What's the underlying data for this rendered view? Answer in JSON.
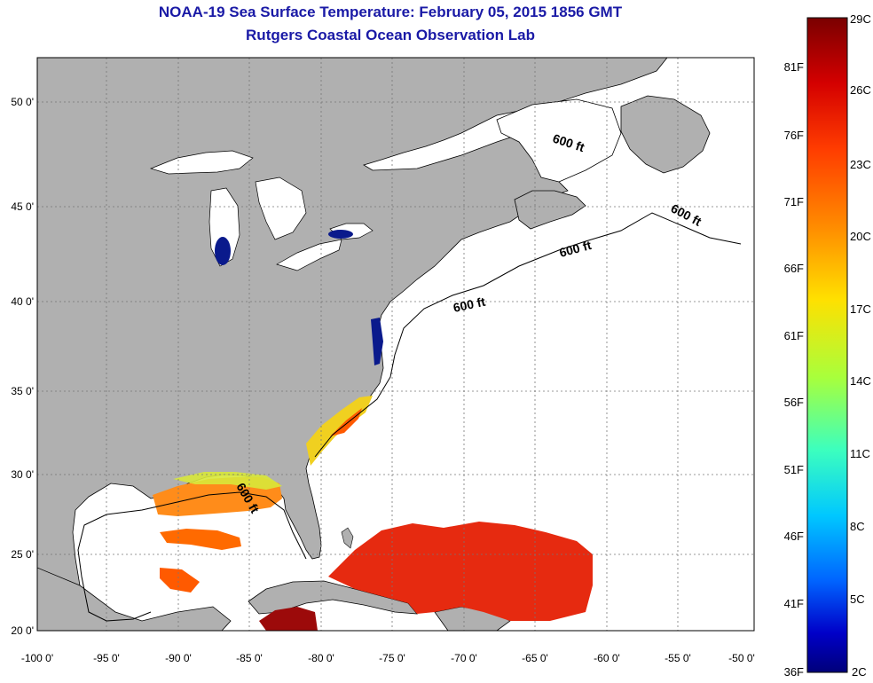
{
  "header": {
    "title": "NOAA-19 Sea Surface Temperature:  February 05, 2015 1856 GMT",
    "subtitle": "Rutgers Coastal Ocean Observation Lab"
  },
  "map": {
    "x_ticks": [
      "-100 0'",
      "-95 0'",
      "-90 0'",
      "-85 0'",
      "-80 0'",
      "-75 0'",
      "-70 0'",
      "-65 0'",
      "-60 0'",
      "-55 0'",
      "-50 0'"
    ],
    "y_ticks": [
      "50 0'",
      "45 0'",
      "40 0'",
      "35 0'",
      "30 0'",
      "25 0'",
      "20 0'"
    ],
    "lon_range": [
      -100,
      -50
    ],
    "lat_range": [
      20,
      52.5
    ],
    "land_color": "#b0b0b0",
    "ocean_color": "#ffffff",
    "contour_labels": [
      "600 ft",
      "600 ft",
      "600 ft",
      "600 ft",
      "600 ft"
    ]
  },
  "colorbar": {
    "celsius_labels": [
      "29C",
      "26C",
      "23C",
      "20C",
      "17C",
      "14C",
      "11C",
      "8C",
      "5C",
      "2C"
    ],
    "fahrenheit_labels": [
      "81F",
      "76F",
      "71F",
      "66F",
      "61F",
      "56F",
      "51F",
      "46F",
      "41F",
      "36F"
    ],
    "colors": [
      "#7a0000",
      "#d40000",
      "#ff3c00",
      "#ff8c00",
      "#ffe000",
      "#a8ff3c",
      "#3cffbe",
      "#00c8ff",
      "#0064ff",
      "#0000c8",
      "#00007a"
    ]
  }
}
